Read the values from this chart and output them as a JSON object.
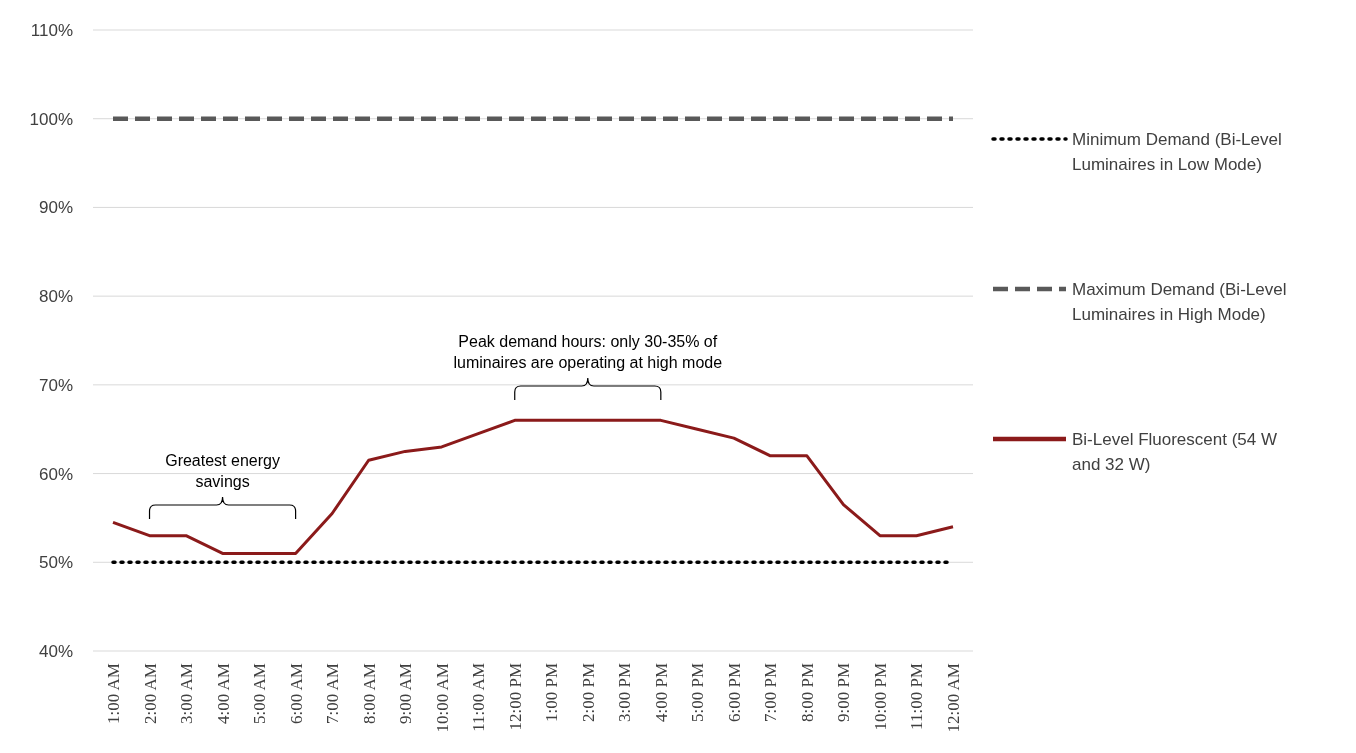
{
  "chart_data": {
    "type": "line",
    "categories": [
      "1:00 AM",
      "2:00 AM",
      "3:00 AM",
      "4:00 AM",
      "5:00 AM",
      "6:00 AM",
      "7:00 AM",
      "8:00 AM",
      "9:00 AM",
      "10:00 AM",
      "11:00 AM",
      "12:00 PM",
      "1:00 PM",
      "2:00 PM",
      "3:00 PM",
      "4:00 PM",
      "5:00 PM",
      "6:00 PM",
      "7:00 PM",
      "8:00 PM",
      "9:00 PM",
      "10:00 PM",
      "11:00 PM",
      "12:00 AM"
    ],
    "series": [
      {
        "name": "Minimum Demand (Bi-Level Luminaires in Low Mode)",
        "color": "#000000",
        "line_style": "dotted",
        "values": [
          50,
          50,
          50,
          50,
          50,
          50,
          50,
          50,
          50,
          50,
          50,
          50,
          50,
          50,
          50,
          50,
          50,
          50,
          50,
          50,
          50,
          50,
          50,
          50
        ]
      },
      {
        "name": "Maximum Demand (Bi-Level Luminaires in High Mode)",
        "color": "#595959",
        "line_style": "dashed",
        "values": [
          100,
          100,
          100,
          100,
          100,
          100,
          100,
          100,
          100,
          100,
          100,
          100,
          100,
          100,
          100,
          100,
          100,
          100,
          100,
          100,
          100,
          100,
          100,
          100
        ]
      },
      {
        "name": "Bi-Level Fluorescent (54 W and 32 W)",
        "color": "#8b1a1a",
        "line_style": "solid",
        "values": [
          54.5,
          53,
          53,
          51,
          51,
          51,
          55.5,
          61.5,
          62.5,
          63,
          64.5,
          66,
          66,
          66,
          66,
          66,
          65,
          64,
          62,
          62,
          56.5,
          53,
          53,
          54
        ]
      }
    ],
    "ylim": [
      40,
      110
    ],
    "yticks": [
      {
        "value": 40,
        "label": "40%"
      },
      {
        "value": 50,
        "label": "50%"
      },
      {
        "value": 60,
        "label": "60%"
      },
      {
        "value": 70,
        "label": "70%"
      },
      {
        "value": 80,
        "label": "80%"
      },
      {
        "value": 90,
        "label": "90%"
      },
      {
        "value": 100,
        "label": "100%"
      },
      {
        "value": 110,
        "label": "110%"
      }
    ],
    "grid": "y",
    "legend": "right",
    "marker": "none",
    "annotations": [
      "Greatest energy savings",
      "Peak demand hours: only 30-35% of luminaires are operating at high mode"
    ]
  }
}
